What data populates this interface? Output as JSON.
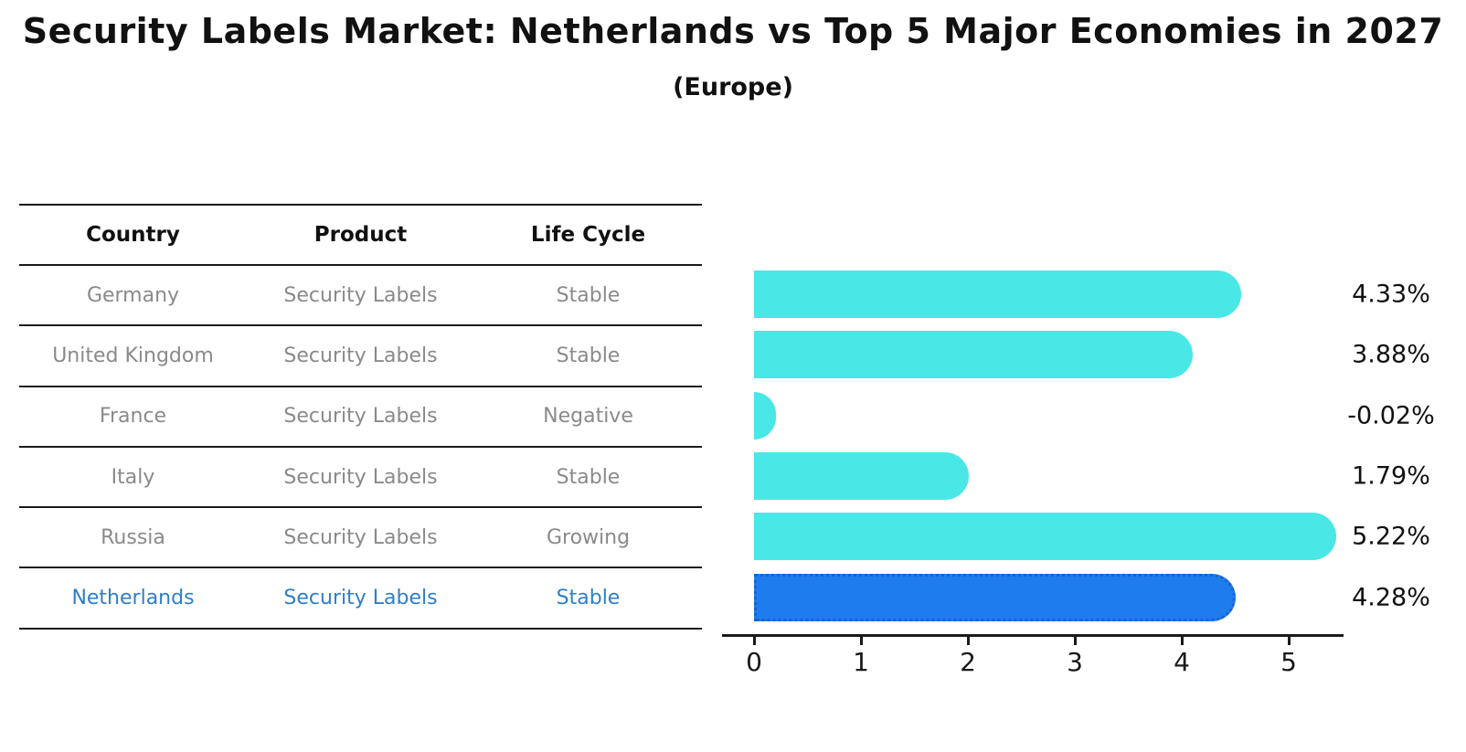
{
  "header": {
    "title": "Security Labels Market: Netherlands vs Top 5 Major Economies in 2027",
    "subtitle": "(Europe)"
  },
  "table": {
    "columns": [
      "Country",
      "Product",
      "Life Cycle"
    ],
    "rows": [
      {
        "country": "Germany",
        "product": "Security Labels",
        "life_cycle": "Stable",
        "highlight": false
      },
      {
        "country": "United Kingdom",
        "product": "Security Labels",
        "life_cycle": "Stable",
        "highlight": false
      },
      {
        "country": "France",
        "product": "Security Labels",
        "life_cycle": "Negative",
        "highlight": false
      },
      {
        "country": "Italy",
        "product": "Security Labels",
        "life_cycle": "Stable",
        "highlight": false
      },
      {
        "country": "Russia",
        "product": "Security Labels",
        "life_cycle": "Growing",
        "highlight": false
      },
      {
        "country": "Netherlands",
        "product": "Security Labels",
        "life_cycle": "Stable",
        "highlight": true
      }
    ]
  },
  "chart_data": {
    "type": "bar",
    "orientation": "horizontal",
    "title": "Security Labels Market: Netherlands vs Top 5 Major Economies in 2027",
    "subtitle": "(Europe)",
    "categories": [
      "Germany",
      "United Kingdom",
      "France",
      "Italy",
      "Russia",
      "Netherlands"
    ],
    "values": [
      4.33,
      3.88,
      -0.02,
      1.79,
      5.22,
      4.28
    ],
    "value_labels": [
      "4.33%",
      "3.88%",
      "-0.02%",
      "1.79%",
      "5.22%",
      "4.28%"
    ],
    "x_ticks": [
      "0",
      "1",
      "2",
      "3",
      "4",
      "5"
    ],
    "xlim": [
      0,
      5.5
    ],
    "xlabel": "",
    "ylabel": "",
    "grid": false,
    "legend": false,
    "bar_color": "#4ae7e7",
    "highlight_bar_color": "#1e7cec",
    "highlight_index": 5,
    "highlight_text_color": "#2e7ec8"
  }
}
